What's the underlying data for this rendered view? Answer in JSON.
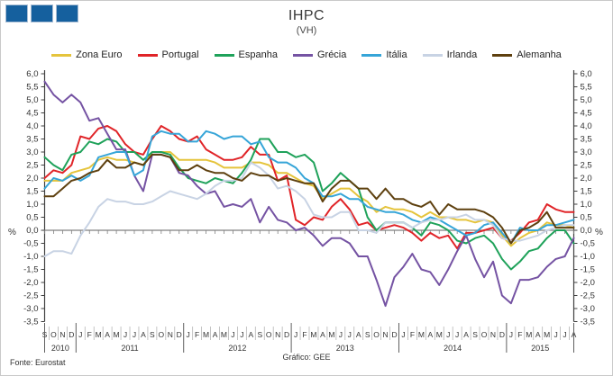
{
  "page": {
    "title": "IHPC",
    "subtitle": "(VH)",
    "source": "Fonte:  Eurostat",
    "credit": "Gráfico: GEE"
  },
  "logo": {
    "squares": 3,
    "color": "#15609E"
  },
  "chart_data": {
    "type": "line",
    "title": "IHPC",
    "subtitle": "(VH)",
    "ylabel": "%",
    "ylabel_right": "%",
    "ylim": [
      -3.5,
      6.0
    ],
    "y_step": 0.5,
    "decimal_separator": ",",
    "grid": "zero-line-only",
    "legend_position": "top",
    "zero_line_color": "#808080",
    "axis_color": "#404040",
    "x_months": [
      "S",
      "O",
      "N",
      "D",
      "J",
      "F",
      "M",
      "A",
      "M",
      "J",
      "J",
      "A",
      "S",
      "O",
      "N",
      "D",
      "J",
      "F",
      "M",
      "A",
      "M",
      "J",
      "J",
      "A",
      "S",
      "O",
      "N",
      "D",
      "J",
      "F",
      "M",
      "A",
      "M",
      "J",
      "J",
      "A",
      "S",
      "O",
      "N",
      "D",
      "J",
      "F",
      "M",
      "A",
      "M",
      "J",
      "J",
      "A",
      "S",
      "O",
      "N",
      "D",
      "J",
      "F",
      "M",
      "A",
      "M",
      "J",
      "J",
      "A"
    ],
    "years": [
      {
        "label": "2010",
        "start": 0,
        "end": 3
      },
      {
        "label": "2011",
        "start": 4,
        "end": 15
      },
      {
        "label": "2012",
        "start": 16,
        "end": 27
      },
      {
        "label": "2013",
        "start": 28,
        "end": 39
      },
      {
        "label": "2014",
        "start": 40,
        "end": 51
      },
      {
        "label": "2015",
        "start": 52,
        "end": 59
      }
    ],
    "series": [
      {
        "name": "Zona Euro",
        "color": "#E5C43C",
        "values": [
          1.9,
          1.9,
          1.9,
          2.2,
          2.3,
          2.4,
          2.7,
          2.8,
          2.7,
          2.7,
          2.6,
          2.5,
          3.0,
          3.0,
          3.0,
          2.7,
          2.7,
          2.7,
          2.7,
          2.6,
          2.4,
          2.4,
          2.4,
          2.6,
          2.6,
          2.5,
          2.2,
          2.2,
          2.0,
          1.8,
          1.7,
          1.2,
          1.4,
          1.6,
          1.6,
          1.3,
          1.1,
          0.7,
          0.9,
          0.8,
          0.8,
          0.7,
          0.5,
          0.7,
          0.5,
          0.5,
          0.4,
          0.4,
          0.3,
          0.4,
          0.3,
          -0.2,
          -0.6,
          -0.3,
          -0.1,
          0.0,
          0.3,
          0.2,
          0.2,
          0.1
        ]
      },
      {
        "name": "Portugal",
        "color": "#E02428",
        "values": [
          2.0,
          2.3,
          2.2,
          2.5,
          3.6,
          3.5,
          3.9,
          4.0,
          3.8,
          3.3,
          3.0,
          2.9,
          3.5,
          4.0,
          3.8,
          3.5,
          3.4,
          3.6,
          3.1,
          2.9,
          2.7,
          2.7,
          2.8,
          3.2,
          2.9,
          2.9,
          1.9,
          2.1,
          0.4,
          0.2,
          0.5,
          0.4,
          0.9,
          1.2,
          0.8,
          0.2,
          0.3,
          0.0,
          0.1,
          0.2,
          0.1,
          -0.1,
          -0.4,
          -0.1,
          -0.3,
          -0.2,
          -0.7,
          -0.1,
          -0.1,
          0.0,
          0.1,
          -0.3,
          -0.4,
          -0.1,
          0.3,
          0.4,
          1.0,
          0.8,
          0.7,
          0.7
        ]
      },
      {
        "name": "Espanha",
        "color": "#1FA25A",
        "values": [
          2.8,
          2.5,
          2.3,
          2.9,
          3.0,
          3.4,
          3.3,
          3.5,
          3.4,
          3.0,
          3.0,
          2.7,
          3.0,
          3.0,
          2.9,
          2.4,
          2.0,
          1.9,
          1.8,
          2.0,
          1.9,
          1.8,
          2.2,
          2.7,
          3.5,
          3.5,
          3.0,
          3.0,
          2.8,
          2.9,
          2.6,
          1.5,
          1.8,
          2.2,
          1.9,
          1.6,
          0.5,
          0.0,
          0.3,
          0.3,
          0.3,
          0.1,
          -0.2,
          0.3,
          0.2,
          0.0,
          -0.4,
          -0.5,
          -0.3,
          -0.2,
          -0.5,
          -1.1,
          -1.5,
          -1.2,
          -0.8,
          -0.7,
          -0.3,
          0.0,
          0.0,
          -0.5
        ]
      },
      {
        "name": "Grécia",
        "color": "#7553A3",
        "values": [
          5.7,
          5.2,
          4.9,
          5.2,
          4.9,
          4.2,
          4.3,
          3.7,
          3.1,
          3.1,
          2.1,
          1.5,
          2.9,
          2.9,
          2.8,
          2.2,
          2.1,
          1.7,
          1.4,
          1.5,
          0.9,
          1.0,
          0.9,
          1.2,
          0.3,
          0.9,
          0.4,
          0.3,
          0.0,
          0.1,
          -0.2,
          -0.6,
          -0.3,
          -0.3,
          -0.5,
          -1.0,
          -1.0,
          -1.9,
          -2.9,
          -1.8,
          -1.4,
          -0.9,
          -1.5,
          -1.6,
          -2.1,
          -1.5,
          -0.8,
          -0.2,
          -1.1,
          -1.8,
          -1.2,
          -2.5,
          -2.8,
          -1.9,
          -1.9,
          -1.8,
          -1.4,
          -1.1,
          -1.0,
          -0.3
        ]
      },
      {
        "name": "Itália",
        "color": "#36A5D8",
        "values": [
          1.6,
          2.0,
          1.9,
          2.1,
          1.9,
          2.1,
          2.8,
          2.9,
          3.0,
          3.0,
          2.1,
          2.3,
          3.6,
          3.8,
          3.7,
          3.7,
          3.4,
          3.4,
          3.8,
          3.7,
          3.5,
          3.6,
          3.6,
          3.3,
          3.4,
          2.8,
          2.6,
          2.6,
          2.4,
          2.0,
          1.8,
          1.3,
          1.3,
          1.4,
          1.2,
          1.2,
          0.9,
          0.8,
          0.7,
          0.7,
          0.6,
          0.4,
          0.3,
          0.5,
          0.4,
          0.2,
          0.0,
          -0.2,
          -0.1,
          0.2,
          0.3,
          -0.1,
          -0.5,
          0.1,
          0.0,
          0.0,
          0.2,
          0.2,
          0.3,
          0.4
        ]
      },
      {
        "name": "Irlanda",
        "color": "#C8D3E4",
        "values": [
          -1.0,
          -0.8,
          -0.8,
          -0.9,
          -0.2,
          0.3,
          0.9,
          1.2,
          1.1,
          1.1,
          1.0,
          1.0,
          1.1,
          1.3,
          1.5,
          1.4,
          1.3,
          1.2,
          1.4,
          1.7,
          1.9,
          1.9,
          2.0,
          2.6,
          2.4,
          2.1,
          1.6,
          1.7,
          1.5,
          1.2,
          0.6,
          0.5,
          0.5,
          0.7,
          0.7,
          0.0,
          0.0,
          -0.1,
          0.3,
          0.3,
          0.3,
          0.1,
          0.3,
          0.4,
          0.4,
          0.5,
          0.5,
          0.6,
          0.4,
          0.4,
          0.2,
          -0.3,
          -0.4,
          -0.4,
          -0.3,
          -0.2,
          0.0,
          0.1,
          0.2,
          0.2
        ]
      },
      {
        "name": "Alemanha",
        "color": "#5E400F",
        "values": [
          1.3,
          1.3,
          1.6,
          1.9,
          2.0,
          2.2,
          2.3,
          2.7,
          2.4,
          2.4,
          2.6,
          2.5,
          2.9,
          2.9,
          2.8,
          2.3,
          2.3,
          2.5,
          2.3,
          2.2,
          2.2,
          2.0,
          1.9,
          2.2,
          2.1,
          2.1,
          1.9,
          2.0,
          1.9,
          1.8,
          1.8,
          1.1,
          1.6,
          1.9,
          1.9,
          1.6,
          1.6,
          1.2,
          1.6,
          1.2,
          1.2,
          1.0,
          0.9,
          1.1,
          0.6,
          1.0,
          0.8,
          0.8,
          0.8,
          0.7,
          0.5,
          0.1,
          -0.5,
          0.0,
          0.1,
          0.3,
          0.7,
          0.1,
          0.1,
          0.1
        ]
      }
    ]
  }
}
